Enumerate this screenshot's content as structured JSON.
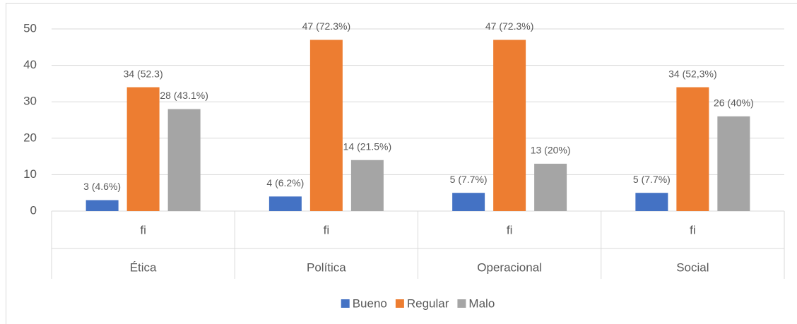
{
  "chart_data": {
    "type": "bar",
    "categories": [
      "Ética",
      "Política",
      "Operacional",
      "Social"
    ],
    "subcategories": [
      "fi",
      "fi",
      "fi",
      "fi"
    ],
    "series": [
      {
        "name": "Bueno",
        "color": "#4472c4",
        "values": [
          3,
          4,
          5,
          5
        ],
        "value_labels": [
          "3 (4.6%)",
          "4 (6.2%)",
          "5 (7.7%)",
          "5 (7.7%)"
        ]
      },
      {
        "name": "Regular",
        "color": "#ed7d31",
        "values": [
          34,
          47,
          47,
          34
        ],
        "value_labels": [
          "34 (52.3)",
          "47 (72.3%)",
          "47 (72.3%)",
          "34 (52,3%)"
        ]
      },
      {
        "name": "Malo",
        "color": "#a5a5a5",
        "values": [
          28,
          14,
          13,
          26
        ],
        "value_labels": [
          "28 (43.1%)",
          "14 (21.5%)",
          "13 (20%)",
          "26 (40%)"
        ]
      }
    ],
    "ylim": [
      0,
      50
    ],
    "yticks": [
      0,
      10,
      20,
      30,
      40,
      50
    ],
    "grid": true,
    "legend": "bottom"
  }
}
